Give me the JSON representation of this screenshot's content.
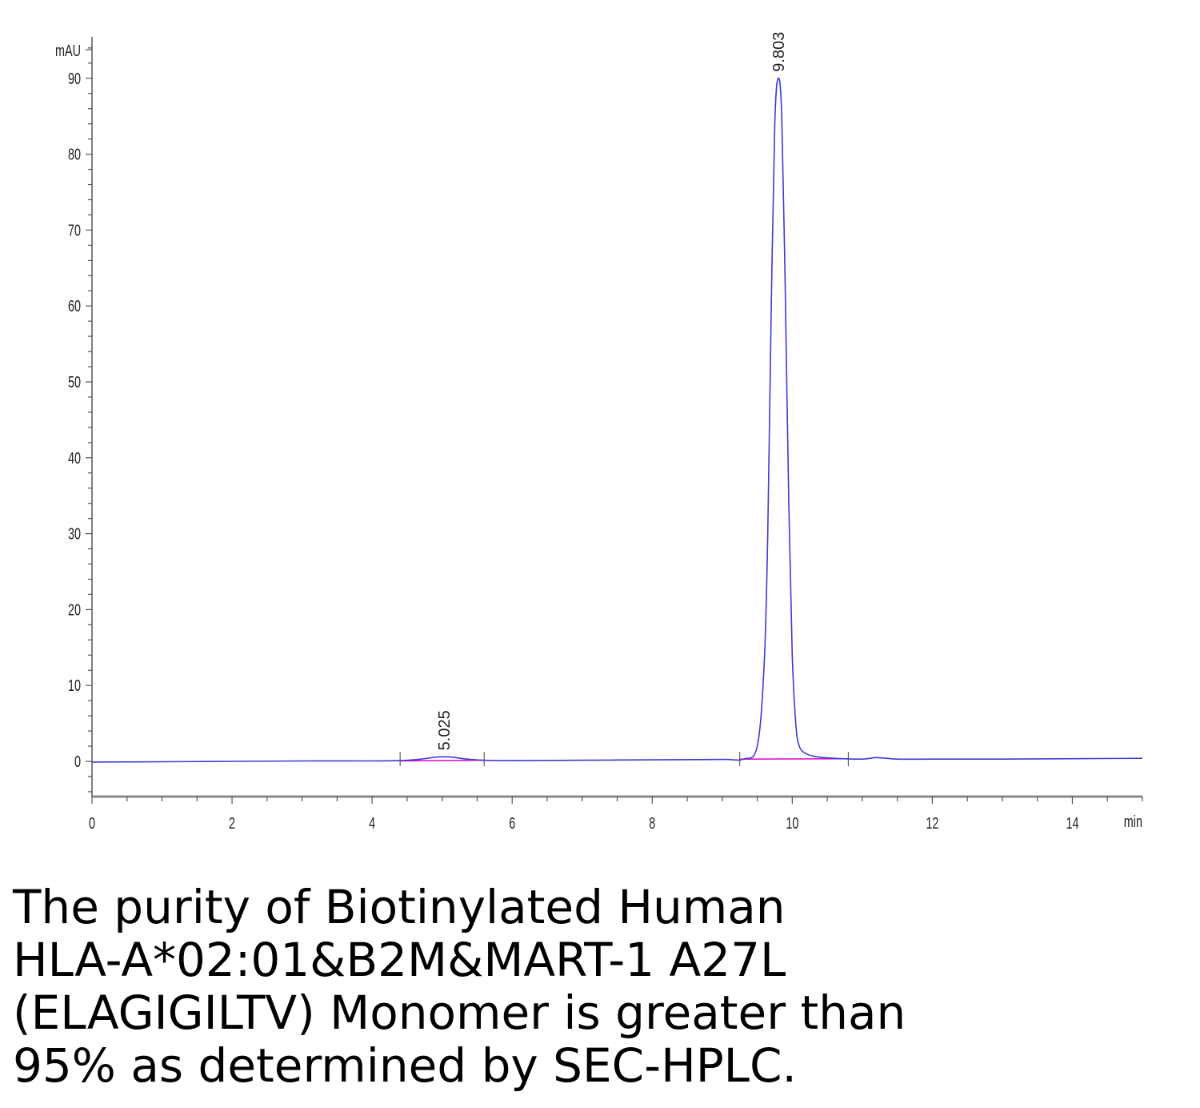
{
  "chart_data": {
    "type": "line",
    "ylabel": "mAU",
    "xlabel": "min",
    "xlim": [
      0,
      15
    ],
    "ylim": [
      -5,
      95
    ],
    "x_ticks": [
      0,
      2,
      4,
      6,
      8,
      10,
      12,
      14
    ],
    "x_tick_labels": [
      "0",
      "2",
      "4",
      "6",
      "8",
      "10",
      "12",
      "14"
    ],
    "y_ticks": [
      0,
      10,
      20,
      30,
      40,
      50,
      60,
      70,
      80,
      90
    ],
    "y_tick_labels": [
      "0",
      "10",
      "20",
      "30",
      "40",
      "50",
      "60",
      "70",
      "80",
      "90"
    ],
    "peaks": [
      {
        "retention_time": 5.025,
        "label": "5.025",
        "height": 0.6
      },
      {
        "retention_time": 9.803,
        "label": "9.803",
        "height": 90.0
      }
    ],
    "series": [
      {
        "color": "#3b3bd6",
        "x": [
          0,
          1,
          2,
          3,
          4,
          4.4,
          4.7,
          4.9,
          5.025,
          5.15,
          5.35,
          5.6,
          6,
          7,
          8,
          9,
          9.3,
          9.5,
          9.6,
          9.65,
          9.7,
          9.75,
          9.8,
          9.85,
          9.9,
          9.95,
          10.0,
          10.05,
          10.1,
          10.2,
          10.35,
          10.6,
          11,
          11.2,
          11.5,
          12,
          13,
          14,
          15
        ],
        "y": [
          -0.1,
          -0.05,
          0,
          0.05,
          0.05,
          0.1,
          0.3,
          0.55,
          0.6,
          0.55,
          0.3,
          0.15,
          0.1,
          0.15,
          0.2,
          0.25,
          0.3,
          2.0,
          13.0,
          30.0,
          60.0,
          84.0,
          90.0,
          85.0,
          62.0,
          34.0,
          14.0,
          5.0,
          2.0,
          1.0,
          0.6,
          0.4,
          0.3,
          0.5,
          0.3,
          0.3,
          0.3,
          0.35,
          0.4
        ]
      }
    ],
    "baselines": [
      {
        "color": "#e000c8",
        "x": [
          4.4,
          5.6
        ],
        "y": [
          0.05,
          0.15
        ]
      },
      {
        "color": "#e000c8",
        "x": [
          9.25,
          10.8
        ],
        "y": [
          0.3,
          0.35
        ]
      }
    ],
    "integration_marks": [
      4.4,
      5.6,
      9.25,
      10.8
    ]
  },
  "caption": {
    "lines": [
      "The purity of Biotinylated Human",
      "HLA-A*02:01&B2M&MART-1 A27L",
      "(ELAGIGILTV) Monomer is greater than",
      "95% as determined by SEC-HPLC."
    ]
  }
}
